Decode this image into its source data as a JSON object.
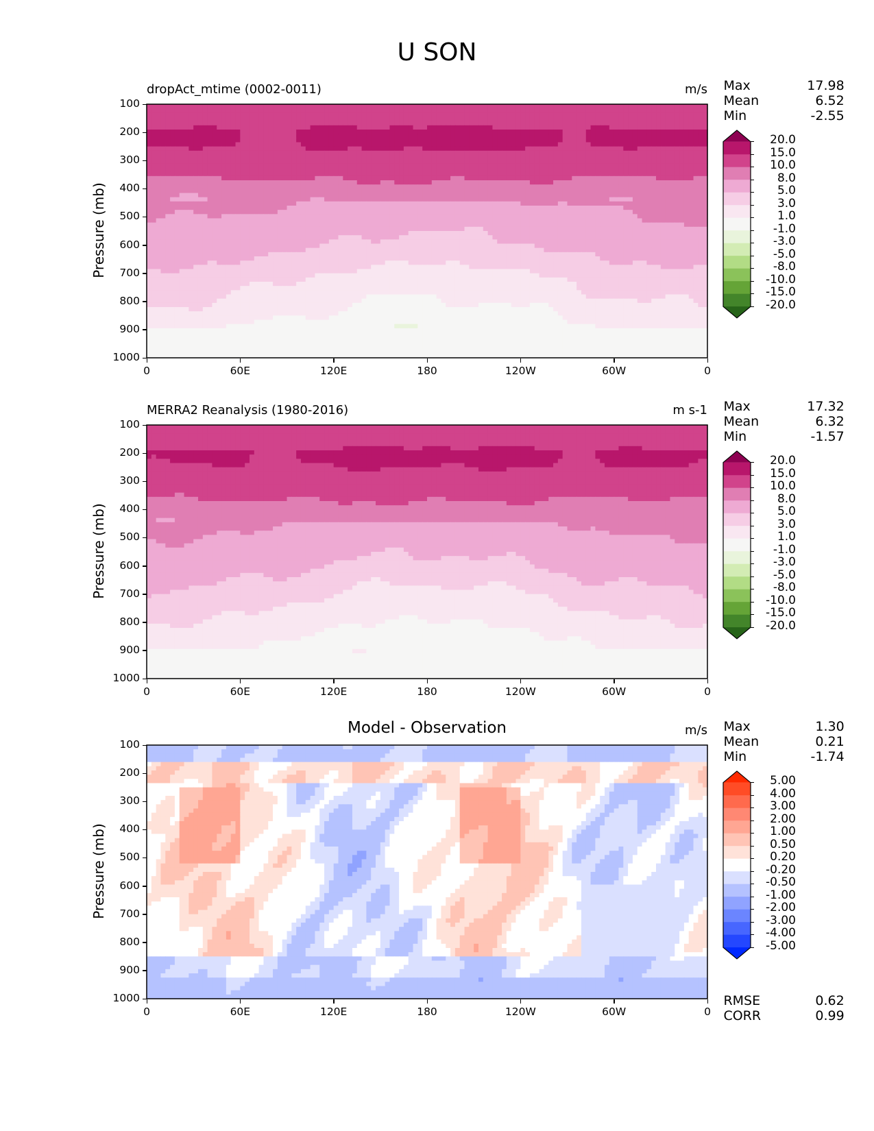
{
  "suptitle": "U SON",
  "chart_data": [
    {
      "type": "heatmap",
      "title": "dropAct_mtime (0002-0011)",
      "units": "m/s",
      "xlabel": "",
      "ylabel": "Pressure (mb)",
      "xticks": [
        "0",
        "60E",
        "120E",
        "180",
        "120W",
        "60W",
        "0"
      ],
      "yticks": [
        "100",
        "200",
        "300",
        "400",
        "500",
        "600",
        "700",
        "800",
        "900",
        "1000"
      ],
      "ylim": [
        1000,
        100
      ],
      "xlim": [
        0,
        360
      ],
      "stats": {
        "Max": "17.98",
        "Mean": "6.52",
        "Min": "-2.55"
      },
      "colorbar": {
        "labels": [
          "20.0",
          "15.0",
          "10.0",
          "8.0",
          "5.0",
          "3.0",
          "1.0",
          "-1.0",
          "-3.0",
          "-5.0",
          "-8.0",
          "-10.0",
          "-15.0",
          "-20.0"
        ],
        "colors": [
          "#8e0152",
          "#b8166b",
          "#d1438b",
          "#e07eb3",
          "#eeaad3",
          "#f6cde5",
          "#f9e7f1",
          "#f6f6f5",
          "#e9f4dc",
          "#d3ecb4",
          "#b2dc85",
          "#8bc25a",
          "#65a437",
          "#43852a",
          "#276419"
        ]
      },
      "bands_by_level": [
        {
          "p": 100,
          "u": 11.5
        },
        {
          "p": 150,
          "u": 13
        },
        {
          "p": 200,
          "u": 16
        },
        {
          "p": 250,
          "u": 15.5
        },
        {
          "p": 300,
          "u": 12
        },
        {
          "p": 400,
          "u": 9
        },
        {
          "p": 450,
          "u": 8.2
        },
        {
          "p": 500,
          "u": 7
        },
        {
          "p": 600,
          "u": 5.5
        },
        {
          "p": 700,
          "u": 3.5
        },
        {
          "p": 800,
          "u": 2
        },
        {
          "p": 900,
          "u": 0.3
        },
        {
          "p": 1000,
          "u": -0.5
        }
      ]
    },
    {
      "type": "heatmap",
      "title": "MERRA2 Reanalysis (1980-2016)",
      "units": "m s-1",
      "xlabel": "",
      "ylabel": "Pressure (mb)",
      "xticks": [
        "0",
        "60E",
        "120E",
        "180",
        "120W",
        "60W",
        "0"
      ],
      "yticks": [
        "100",
        "200",
        "300",
        "400",
        "500",
        "600",
        "700",
        "800",
        "900",
        "1000"
      ],
      "ylim": [
        1000,
        100
      ],
      "xlim": [
        0,
        360
      ],
      "stats": {
        "Max": "17.32",
        "Mean": "6.32",
        "Min": "-1.57"
      },
      "colorbar": {
        "labels": [
          "20.0",
          "15.0",
          "10.0",
          "8.0",
          "5.0",
          "3.0",
          "1.0",
          "-1.0",
          "-3.0",
          "-5.0",
          "-8.0",
          "-10.0",
          "-15.0",
          "-20.0"
        ],
        "colors": [
          "#8e0152",
          "#b8166b",
          "#d1438b",
          "#e07eb3",
          "#eeaad3",
          "#f6cde5",
          "#f9e7f1",
          "#f6f6f5",
          "#e9f4dc",
          "#d3ecb4",
          "#b2dc85",
          "#8bc25a",
          "#65a437",
          "#43852a",
          "#276419"
        ]
      },
      "bands_by_level": [
        {
          "p": 100,
          "u": 11.5
        },
        {
          "p": 150,
          "u": 13
        },
        {
          "p": 200,
          "u": 16
        },
        {
          "p": 250,
          "u": 15
        },
        {
          "p": 300,
          "u": 12
        },
        {
          "p": 400,
          "u": 9
        },
        {
          "p": 450,
          "u": 8.2
        },
        {
          "p": 500,
          "u": 7
        },
        {
          "p": 600,
          "u": 5.5
        },
        {
          "p": 700,
          "u": 3.5
        },
        {
          "p": 800,
          "u": 2
        },
        {
          "p": 900,
          "u": 0.5
        },
        {
          "p": 1000,
          "u": -0.3
        }
      ]
    },
    {
      "type": "heatmap",
      "title": "Model - Observation",
      "units": "m/s",
      "xlabel": "",
      "ylabel": "Pressure (mb)",
      "xticks": [
        "0",
        "60E",
        "120E",
        "180",
        "120W",
        "60W",
        "0"
      ],
      "yticks": [
        "100",
        "200",
        "300",
        "400",
        "500",
        "600",
        "700",
        "800",
        "900",
        "1000"
      ],
      "ylim": [
        1000,
        100
      ],
      "xlim": [
        0,
        360
      ],
      "stats": {
        "Max": "1.30",
        "Mean": "0.21",
        "Min": "-1.74"
      },
      "metrics": {
        "RMSE": "0.62",
        "CORR": "0.99"
      },
      "colorbar": {
        "labels": [
          "5.00",
          "4.00",
          "3.00",
          "2.00",
          "1.00",
          "0.50",
          "0.20",
          "-0.20",
          "-0.50",
          "-1.00",
          "-2.00",
          "-3.00",
          "-4.00",
          "-5.00"
        ],
        "colors": [
          "#ff2a00",
          "#ff4c26",
          "#ff6a4d",
          "#ff8873",
          "#ffa693",
          "#ffc4b5",
          "#ffe2d9",
          "#ffffff",
          "#dae0ff",
          "#b5c2ff",
          "#90a3ff",
          "#6b85ff",
          "#4766ff",
          "#2447ff",
          "#0029ff"
        ]
      }
    }
  ]
}
